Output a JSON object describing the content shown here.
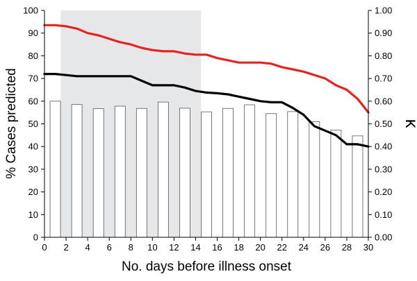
{
  "chart_data": {
    "type": "bar",
    "xlabel": "No. days before illness onset",
    "ylabel_left": "% Cases predicted",
    "ylabel_right": "κ",
    "x": [
      0,
      1,
      2,
      3,
      4,
      5,
      6,
      7,
      8,
      9,
      10,
      11,
      12,
      13,
      14,
      15,
      16,
      17,
      18,
      19,
      20,
      21,
      22,
      23,
      24,
      25,
      26,
      27,
      28,
      29,
      30
    ],
    "x_ticks": [
      "0",
      "2",
      "4",
      "6",
      "8",
      "10",
      "12",
      "14",
      "16",
      "18",
      "20",
      "22",
      "24",
      "26",
      "28",
      "30"
    ],
    "ylim_left": [
      0,
      100
    ],
    "y_ticks_left": [
      "0",
      "10",
      "20",
      "30",
      "40",
      "50",
      "60",
      "70",
      "80",
      "90",
      "100"
    ],
    "ylim_right": [
      0,
      1
    ],
    "y_ticks_right": [
      "0.00",
      "0.10",
      "0.20",
      "0.30",
      "0.40",
      "0.50",
      "0.60",
      "0.70",
      "0.80",
      "0.90",
      "1.00"
    ],
    "shaded_region": {
      "x_start": 1.5,
      "x_end": 14.5,
      "color": "#e6e7e8"
    },
    "bars": {
      "axis": "left",
      "color": "#ffffff",
      "x": [
        1,
        3,
        5,
        7,
        9,
        11,
        13,
        15,
        17,
        19,
        21,
        23,
        25,
        27,
        29
      ],
      "values": [
        60,
        58.5,
        56.7,
        57.8,
        56.8,
        59.6,
        56.9,
        55.3,
        56.8,
        58.4,
        54.5,
        55.4,
        50.9,
        47.3,
        44.7
      ]
    },
    "series": [
      {
        "axis": "left",
        "color": "#e8231f",
        "values": [
          93.5,
          93.5,
          93,
          92,
          90,
          89,
          87.5,
          86,
          85,
          83.5,
          82.5,
          82,
          82,
          81,
          80.5,
          80.5,
          79,
          78,
          77,
          77,
          77,
          76.5,
          75,
          74,
          73,
          71.5,
          70,
          67,
          65,
          61,
          55
        ]
      },
      {
        "axis": "left",
        "color": "#000000",
        "values": [
          72,
          72,
          71.5,
          71,
          71,
          71,
          71,
          71,
          71,
          69,
          67,
          67,
          67,
          66,
          64.5,
          63.8,
          63.5,
          63,
          62,
          61,
          60,
          59.5,
          59.5,
          57,
          54,
          49,
          47,
          45,
          41,
          41,
          40
        ]
      }
    ],
    "grid": false
  }
}
